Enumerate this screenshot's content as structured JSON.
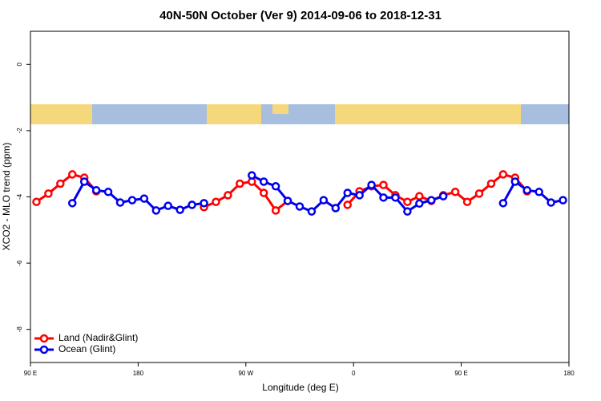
{
  "chart_data": {
    "type": "line",
    "title": "40N-50N October (Ver 9)   2014-09-06 to 2018-12-31",
    "x_label": "Longitude (deg E)",
    "y_label": "XCO2 - MLO trend (ppm)",
    "x": [
      95,
      105,
      115,
      125,
      135,
      145,
      155,
      165,
      175,
      185,
      195,
      205,
      215,
      225,
      235,
      245,
      255,
      265,
      275,
      285,
      295,
      305,
      315,
      325,
      335,
      345,
      355,
      365,
      375,
      385,
      395,
      405,
      415,
      425,
      435,
      445,
      455,
      465,
      475,
      485,
      495,
      505,
      515,
      525,
      535
    ],
    "xlim": [
      90,
      540
    ],
    "xticks": [
      {
        "value": 90,
        "label": "90 E"
      },
      {
        "value": 180,
        "label": "180"
      },
      {
        "value": 270,
        "label": "90 W"
      },
      {
        "value": 360,
        "label": "0"
      },
      {
        "value": 450,
        "label": "90 E"
      },
      {
        "value": 540,
        "label": "180"
      }
    ],
    "ylim": [
      -9,
      1
    ],
    "yticks": [
      0,
      -2,
      -4,
      -6,
      -8
    ],
    "legend": "bottom-left",
    "series": [
      {
        "name": "Land (Nadir&Glint)",
        "color": "#ff0000",
        "values": [
          -4.15,
          -3.9,
          -3.6,
          -3.32,
          -3.42,
          -3.83,
          null,
          null,
          null,
          null,
          null,
          null,
          null,
          null,
          -4.31,
          -4.15,
          -3.95,
          -3.6,
          -3.54,
          -3.88,
          -4.41,
          -4.12,
          null,
          null,
          null,
          null,
          -4.24,
          -3.83,
          -3.68,
          -3.64,
          -3.95,
          -4.15,
          -3.98,
          -4.12,
          -3.95,
          -3.85,
          -4.15,
          -3.9,
          -3.6,
          -3.32,
          -3.42,
          -3.83,
          null,
          null,
          null
        ]
      },
      {
        "name": "Ocean (Glint)",
        "color": "#0000ee",
        "values": [
          null,
          null,
          null,
          -4.19,
          -3.54,
          -3.8,
          -3.85,
          -4.17,
          -4.1,
          -4.05,
          -4.41,
          -4.27,
          -4.39,
          -4.24,
          -4.19,
          null,
          null,
          null,
          -3.35,
          -3.54,
          -3.68,
          -4.12,
          -4.29,
          -4.44,
          -4.1,
          -4.34,
          -3.88,
          -3.95,
          -3.64,
          -4.02,
          -4.02,
          -4.44,
          -4.2,
          -4.1,
          -3.98,
          null,
          null,
          null,
          null,
          -4.19,
          -3.54,
          -3.8,
          -3.85,
          -4.17,
          -4.1
        ]
      }
    ]
  }
}
